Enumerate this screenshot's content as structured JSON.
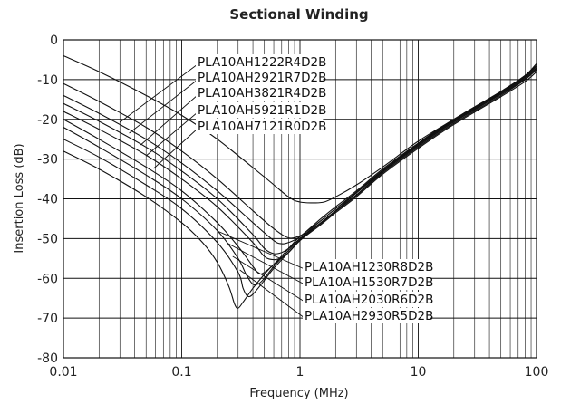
{
  "chart_data": {
    "type": "line",
    "title": "Sectional Winding",
    "xlabel": "Frequency (MHz)",
    "ylabel": "Insertion Loss (dB)",
    "x_scale": "log",
    "xlim": [
      0.01,
      100
    ],
    "ylim": [
      -80,
      0
    ],
    "grid": true,
    "x_ticks": [
      "0.01",
      "0.1",
      "1",
      "10",
      "100"
    ],
    "y_ticks": [
      "0",
      "-10",
      "-20",
      "-30",
      "-40",
      "-50",
      "-60",
      "-70",
      "-80"
    ],
    "series": [
      {
        "name": "PLA10AH1222R4D2B",
        "x": [
          0.01,
          0.02,
          0.05,
          0.1,
          0.2,
          0.5,
          0.8,
          1.0,
          1.3,
          1.6,
          2.0,
          3.0,
          5.0,
          10,
          20,
          50,
          80,
          100
        ],
        "y": [
          -4,
          -8,
          -14,
          -19,
          -25,
          -34.5,
          -39.5,
          -40.8,
          -41,
          -40.8,
          -39.5,
          -36.5,
          -32,
          -25.5,
          -20,
          -13,
          -9,
          -6
        ]
      },
      {
        "name": "PLA10AH2921R7D2B",
        "x": [
          0.01,
          0.02,
          0.05,
          0.1,
          0.2,
          0.4,
          0.6,
          0.8,
          1.0,
          1.3,
          2.0,
          3.0,
          5.0,
          10,
          20,
          50,
          80,
          100
        ],
        "y": [
          -11,
          -15.5,
          -22,
          -28,
          -35,
          -43,
          -47.5,
          -49.8,
          -49.3,
          -47.5,
          -43,
          -38.5,
          -33,
          -26,
          -20,
          -13,
          -9,
          -6
        ]
      },
      {
        "name": "PLA10AH3821R4D2B",
        "x": [
          0.01,
          0.02,
          0.05,
          0.1,
          0.2,
          0.4,
          0.6,
          0.7,
          0.8,
          1.0,
          1.5,
          2.0,
          3.0,
          5.0,
          10,
          20,
          50,
          80,
          100
        ],
        "y": [
          -14,
          -18.5,
          -25,
          -31,
          -38,
          -46,
          -50.5,
          -51.3,
          -51,
          -49.5,
          -45,
          -42,
          -38,
          -32.5,
          -26,
          -20,
          -13,
          -9,
          -6.5
        ]
      },
      {
        "name": "PLA10AH5921R1D2B",
        "x": [
          0.01,
          0.02,
          0.05,
          0.1,
          0.2,
          0.4,
          0.5,
          0.6,
          0.7,
          0.8,
          1.0,
          1.5,
          2.0,
          3.0,
          5.0,
          10,
          20,
          50,
          80,
          100
        ],
        "y": [
          -16,
          -20.5,
          -27,
          -33,
          -40,
          -49,
          -52.5,
          -53.8,
          -53.5,
          -52.5,
          -50,
          -45.5,
          -42.5,
          -38.3,
          -32.8,
          -26.2,
          -20.2,
          -13.2,
          -9.2,
          -6.5
        ]
      },
      {
        "name": "PLA10AH7121R0D2B",
        "x": [
          0.01,
          0.02,
          0.05,
          0.1,
          0.2,
          0.4,
          0.5,
          0.6,
          0.7,
          0.8,
          1.0,
          1.5,
          2.0,
          3.0,
          5.0,
          10,
          20,
          50,
          80,
          100
        ],
        "y": [
          -18,
          -22.5,
          -29,
          -35,
          -42,
          -51,
          -54.5,
          -55.3,
          -54.8,
          -53.5,
          -50.5,
          -46,
          -43,
          -38.5,
          -33,
          -26.3,
          -20.3,
          -13.3,
          -9.3,
          -6.6
        ]
      },
      {
        "name": "PLA10AH1230R8D2B",
        "x": [
          0.01,
          0.02,
          0.05,
          0.1,
          0.2,
          0.3,
          0.4,
          0.45,
          0.5,
          0.6,
          0.8,
          1.0,
          1.5,
          2.0,
          3.0,
          5.0,
          10,
          20,
          50,
          80,
          100
        ],
        "y": [
          -20,
          -25,
          -32,
          -38,
          -46,
          -52,
          -57,
          -58.8,
          -58.5,
          -56.5,
          -52.5,
          -49.5,
          -45.5,
          -42.5,
          -38.5,
          -33,
          -26.5,
          -20.5,
          -13.5,
          -9.5,
          -7
        ]
      },
      {
        "name": "PLA10AH1530R7D2B",
        "x": [
          0.01,
          0.02,
          0.05,
          0.1,
          0.2,
          0.3,
          0.35,
          0.4,
          0.45,
          0.5,
          0.6,
          0.8,
          1.0,
          1.5,
          2.0,
          3.0,
          5.0,
          10,
          20,
          50,
          80,
          100
        ],
        "y": [
          -22,
          -27,
          -34,
          -40,
          -48,
          -55,
          -59,
          -61.5,
          -61.3,
          -60,
          -57,
          -53,
          -50,
          -46,
          -43,
          -39,
          -33.2,
          -26.7,
          -20.7,
          -13.7,
          -9.8,
          -7.2
        ]
      },
      {
        "name": "PLA10AH2030R6D2B",
        "x": [
          0.01,
          0.02,
          0.05,
          0.1,
          0.2,
          0.3,
          0.33,
          0.36,
          0.4,
          0.5,
          0.6,
          0.8,
          1.0,
          1.5,
          2.0,
          3.0,
          5.0,
          10,
          20,
          50,
          80,
          100
        ],
        "y": [
          -25,
          -29.5,
          -36.5,
          -42.5,
          -51,
          -58.5,
          -62.5,
          -64.5,
          -64,
          -60.5,
          -57.5,
          -53.5,
          -50.3,
          -46.2,
          -43.2,
          -39.2,
          -33.5,
          -27,
          -21,
          -14,
          -10,
          -7.5
        ]
      },
      {
        "name": "PLA10AH2930R5D2B",
        "x": [
          0.01,
          0.02,
          0.05,
          0.1,
          0.15,
          0.2,
          0.25,
          0.28,
          0.3,
          0.33,
          0.4,
          0.5,
          0.6,
          0.8,
          1.0,
          1.5,
          2.0,
          3.0,
          5.0,
          10,
          20,
          50,
          80,
          100
        ],
        "y": [
          -28,
          -32.5,
          -39.5,
          -46,
          -51,
          -56,
          -62,
          -66.5,
          -67.5,
          -66,
          -62.5,
          -59,
          -56.5,
          -53.5,
          -50.5,
          -46.5,
          -43.5,
          -39.5,
          -33.8,
          -27.3,
          -21.3,
          -14.3,
          -10.5,
          -8
        ]
      }
    ]
  }
}
